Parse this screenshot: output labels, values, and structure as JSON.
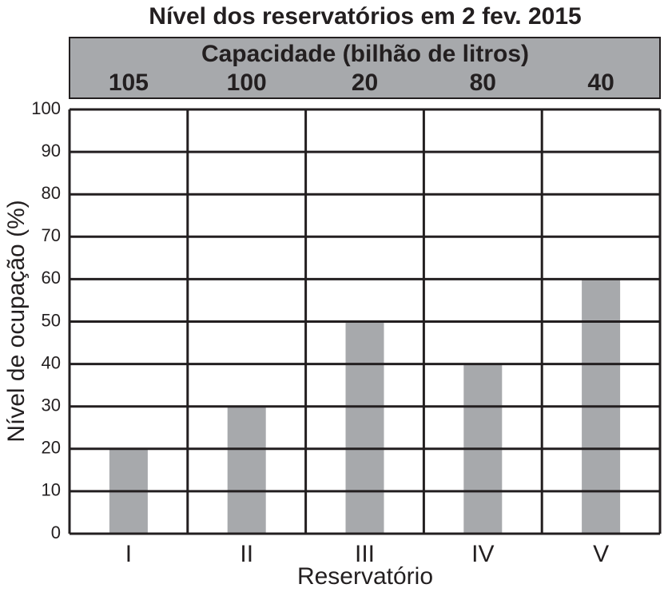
{
  "chart_data": {
    "type": "bar",
    "title": "Nível dos reservatórios em 2 fev. 2015",
    "capacity_label": "Capacidade (bilhão de litros)",
    "capacities": [
      105,
      100,
      20,
      80,
      40
    ],
    "x_label": "Reservatório",
    "y_label": "Nível de ocupação (%)",
    "categories": [
      "I",
      "II",
      "III",
      "IV",
      "V"
    ],
    "values": [
      20,
      30,
      50,
      40,
      60
    ],
    "color": "#a7a9ac",
    "ylim": [
      0,
      100
    ],
    "yticks": [
      0,
      10,
      20,
      30,
      40,
      50,
      60,
      70,
      80,
      90,
      100
    ],
    "grid": true
  }
}
